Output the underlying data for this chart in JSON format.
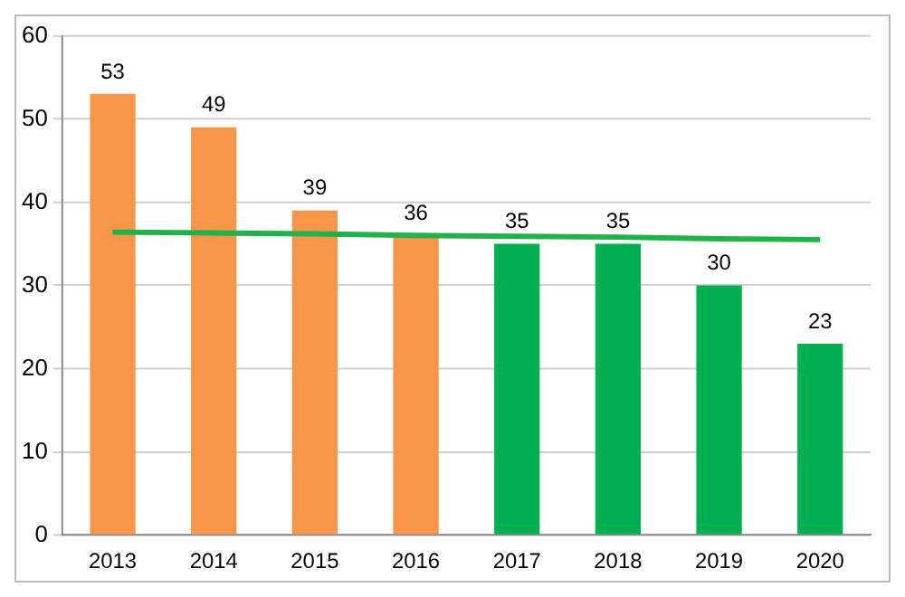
{
  "chart_data": {
    "type": "bar",
    "categories": [
      "2013",
      "2014",
      "2015",
      "2016",
      "2017",
      "2018",
      "2019",
      "2020"
    ],
    "series": [
      {
        "values": [
          53,
          49,
          39,
          36,
          35,
          35,
          30,
          23
        ],
        "value_labels": [
          "53",
          "49",
          "39",
          "36",
          "35",
          "35",
          "30",
          "23"
        ],
        "colors": [
          "#f79646",
          "#f79646",
          "#f79646",
          "#f79646",
          "#00b050",
          "#00b050",
          "#00b050",
          "#00b050"
        ]
      },
      {
        "type": "line",
        "color": "#21b24b",
        "values": [
          36.4,
          36.3,
          36.2,
          36.0,
          35.9,
          35.8,
          35.6,
          35.5
        ]
      }
    ],
    "ylim": [
      0,
      60
    ],
    "yticks": [
      0,
      10,
      20,
      30,
      40,
      50,
      60
    ],
    "grid": "y",
    "legend": false,
    "marker": "none"
  }
}
